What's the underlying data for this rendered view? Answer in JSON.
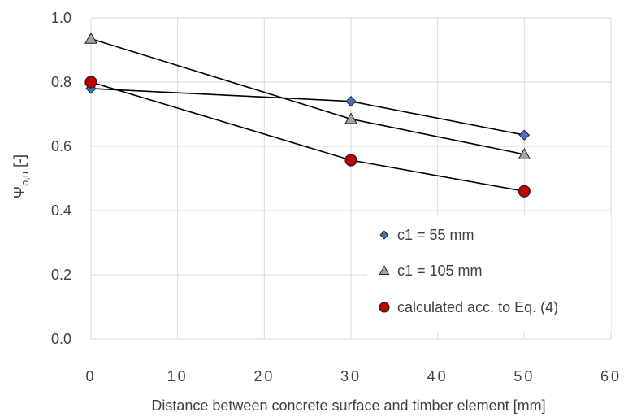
{
  "chart_data": {
    "type": "line",
    "title": "",
    "xlabel": "Distance between concrete surface and timber element [mm]",
    "ylabel": "Ψb,u [-]",
    "ylabel_main": "Ψ",
    "ylabel_sub": "b,u",
    "ylabel_unit": " [-]",
    "xlim": [
      0,
      60
    ],
    "ylim": [
      0.0,
      1.0
    ],
    "xticks": [
      "0",
      "10",
      "20",
      "30",
      "40",
      "50",
      "60"
    ],
    "yticks": [
      "0.0",
      "0.2",
      "0.4",
      "0.6",
      "0.8",
      "1.0"
    ],
    "grid": true,
    "legend_position": "bottom-right",
    "series": [
      {
        "name": "c1 = 55 mm",
        "marker": "diamond",
        "color": "#4472C4",
        "x": [
          0,
          30,
          50
        ],
        "y": [
          0.78,
          0.74,
          0.635
        ]
      },
      {
        "name": "c1 = 105 mm",
        "marker": "triangle",
        "color": "#A5A5A5",
        "x": [
          0,
          30,
          50
        ],
        "y": [
          0.935,
          0.685,
          0.575
        ]
      },
      {
        "name": "calculated acc. to Eq. (4)",
        "marker": "circle",
        "color": "#C00000",
        "x": [
          0,
          30,
          50
        ],
        "y": [
          0.8,
          0.557,
          0.46
        ]
      }
    ]
  }
}
